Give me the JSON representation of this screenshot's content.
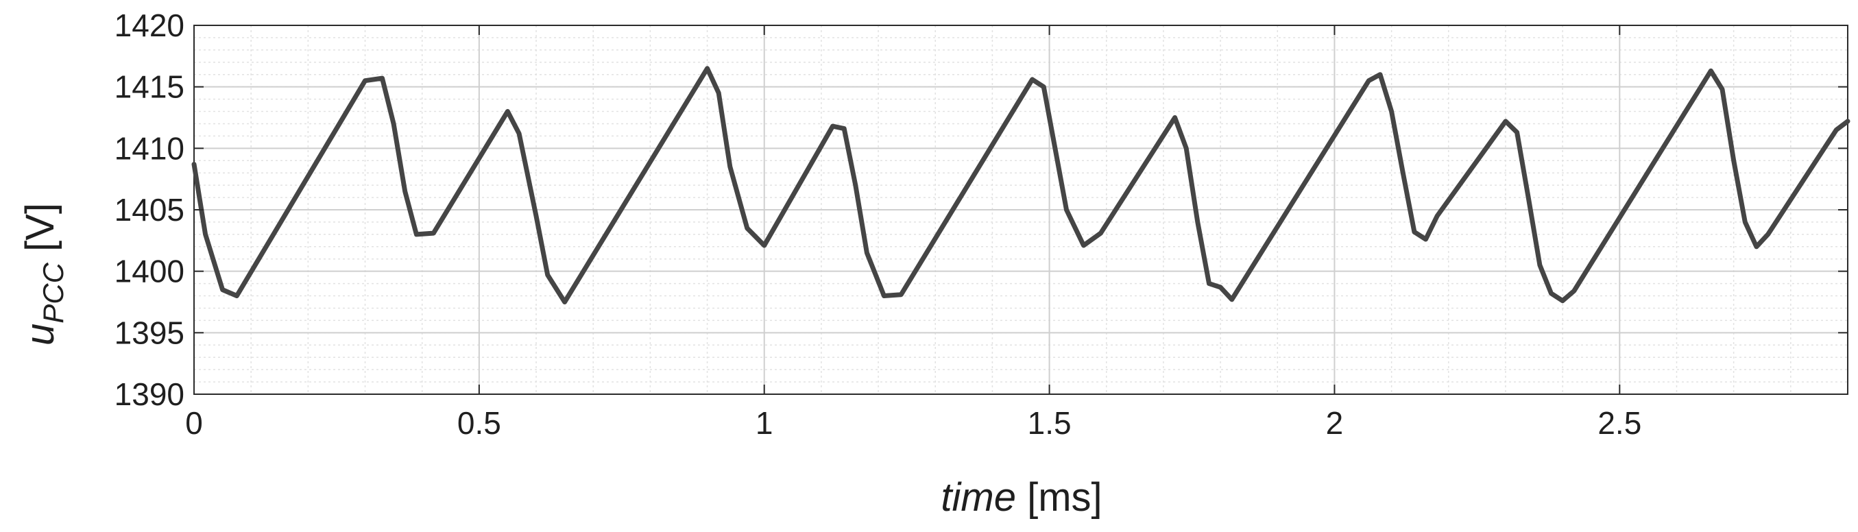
{
  "chart_data": {
    "type": "line",
    "xlabel": {
      "var": "time",
      "unit": "[ms]"
    },
    "ylabel": {
      "var": "u",
      "sub": "PCC",
      "unit": "[V]"
    },
    "xlim": [
      0,
      2.9
    ],
    "ylim": [
      1390,
      1420
    ],
    "xticks": [
      0,
      0.5,
      1,
      1.5,
      2,
      2.5
    ],
    "xtick_labels": [
      "0",
      "0.5",
      "1",
      "1.5",
      "2",
      "2.5"
    ],
    "yticks": [
      1390,
      1395,
      1400,
      1405,
      1410,
      1415,
      1420
    ],
    "ytick_labels": [
      "1390",
      "1395",
      "1400",
      "1405",
      "1410",
      "1415",
      "1420"
    ],
    "grid": true,
    "minor_grid": true,
    "line_color": "#454545",
    "series": [
      {
        "x": [
          0,
          0.02,
          0.05,
          0.075,
          0.3,
          0.33,
          0.35,
          0.37,
          0.39,
          0.42,
          0.55,
          0.57,
          0.6,
          0.62,
          0.65,
          0.9,
          0.92,
          0.94,
          0.97,
          1.0,
          1.12,
          1.14,
          1.16,
          1.18,
          1.21,
          1.24,
          1.47,
          1.49,
          1.51,
          1.53,
          1.56,
          1.59,
          1.72,
          1.74,
          1.76,
          1.78,
          1.8,
          1.82,
          2.06,
          2.08,
          2.1,
          2.12,
          2.14,
          2.16,
          2.18,
          2.3,
          2.32,
          2.34,
          2.36,
          2.38,
          2.4,
          2.42,
          2.66,
          2.68,
          2.7,
          2.72,
          2.74,
          2.76,
          2.88,
          2.9
        ],
        "y": [
          1408.7,
          1403,
          1398.5,
          1398,
          1415.5,
          1415.7,
          1412,
          1406.5,
          1403,
          1403.1,
          1413,
          1411.2,
          1404.5,
          1399.7,
          1397.5,
          1416.5,
          1414.5,
          1408.5,
          1403.5,
          1402.1,
          1411.8,
          1411.6,
          1407,
          1401.5,
          1398,
          1398.1,
          1415.6,
          1415,
          1410,
          1405,
          1402.1,
          1403.1,
          1412.5,
          1410,
          1404,
          1399,
          1398.7,
          1397.7,
          1415.5,
          1416,
          1413,
          1408,
          1403.2,
          1402.6,
          1404.5,
          1412.2,
          1411.3,
          1406,
          1400.5,
          1398.2,
          1397.6,
          1398.4,
          1416.3,
          1414.8,
          1409,
          1404,
          1402,
          1403,
          1411.5,
          1412.2
        ]
      }
    ]
  }
}
